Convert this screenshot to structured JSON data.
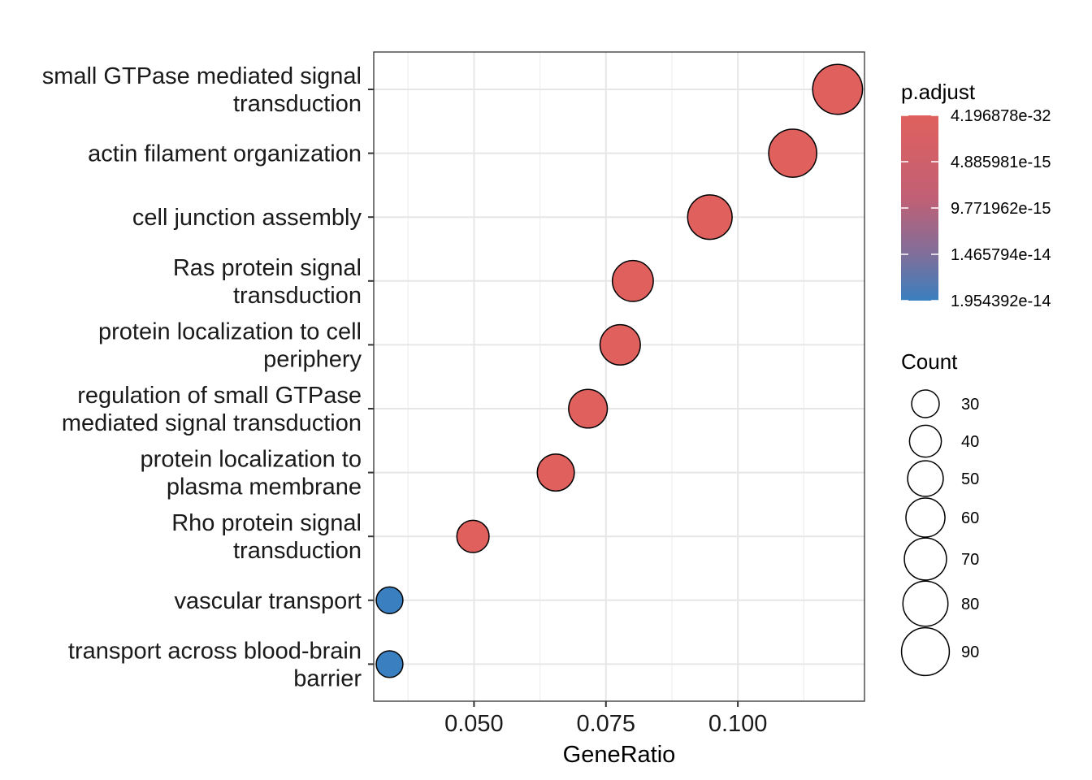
{
  "chart_data": {
    "type": "scatter",
    "xlabel": "GeneRatio",
    "ylabel": "",
    "xlim": [
      0.031,
      0.124
    ],
    "x_ticks": [
      {
        "value": 0.05,
        "label": "0.050"
      },
      {
        "value": 0.075,
        "label": "0.075"
      },
      {
        "value": 0.1,
        "label": "0.100"
      }
    ],
    "x_minor": [
      0.0375,
      0.0625,
      0.0875,
      0.1125
    ],
    "grid": true,
    "legend_position": "right",
    "categories": [
      "small GTPase mediated signal transduction",
      "actin filament organization",
      "cell junction assembly",
      "Ras protein signal transduction",
      "protein localization to cell periphery",
      "regulation of small GTPase mediated signal transduction",
      "protein localization to plasma membrane",
      "Rho protein signal transduction",
      "vascular transport",
      "transport across blood-brain barrier"
    ],
    "category_labels": [
      [
        "small GTPase mediated signal",
        "transduction"
      ],
      [
        "actin filament organization"
      ],
      [
        "cell junction assembly"
      ],
      [
        "Ras protein signal",
        "transduction"
      ],
      [
        "protein localization to cell",
        "periphery"
      ],
      [
        "regulation of small GTPase",
        "mediated signal transduction"
      ],
      [
        "protein localization to",
        "plasma membrane"
      ],
      [
        "Rho protein signal",
        "transduction"
      ],
      [
        "vascular transport"
      ],
      [
        "transport across blood-brain",
        "barrier"
      ]
    ],
    "points": [
      {
        "term": "small GTPase mediated signal transduction",
        "gene_ratio": 0.1189,
        "count": 98,
        "p_adjust": 4.2e-32
      },
      {
        "term": "actin filament organization",
        "gene_ratio": 0.1104,
        "count": 91,
        "p_adjust": 1e-28
      },
      {
        "term": "cell junction assembly",
        "gene_ratio": 0.0947,
        "count": 78,
        "p_adjust": 1e-25
      },
      {
        "term": "Ras protein signal transduction",
        "gene_ratio": 0.0801,
        "count": 66,
        "p_adjust": 1e-22
      },
      {
        "term": "protein localization to cell periphery",
        "gene_ratio": 0.0777,
        "count": 64,
        "p_adjust": 1e-21
      },
      {
        "term": "regulation of small GTPase mediated signal transduction",
        "gene_ratio": 0.0716,
        "count": 59,
        "p_adjust": 1e-20
      },
      {
        "term": "protein localization to plasma membrane",
        "gene_ratio": 0.0655,
        "count": 54,
        "p_adjust": 1e-19
      },
      {
        "term": "Rho protein signal transduction",
        "gene_ratio": 0.0498,
        "count": 41,
        "p_adjust": 1e-18
      },
      {
        "term": "vascular transport",
        "gene_ratio": 0.034,
        "count": 28,
        "p_adjust": 1.954392e-14
      },
      {
        "term": "transport across blood-brain barrier",
        "gene_ratio": 0.034,
        "count": 28,
        "p_adjust": 1.954392e-14
      }
    ],
    "color_legend": {
      "title": "p.adjust",
      "low_color": "#E0605D",
      "high_color": "#3A7FBF",
      "range": [
        4.196878e-32,
        1.954392e-14
      ],
      "labels": [
        "4.196878e-32",
        "4.885981e-15",
        "9.771962e-15",
        "1.465794e-14",
        "1.954392e-14"
      ]
    },
    "size_legend": {
      "title": "Count",
      "values": [
        30,
        40,
        50,
        60,
        70,
        80,
        90
      ]
    }
  }
}
